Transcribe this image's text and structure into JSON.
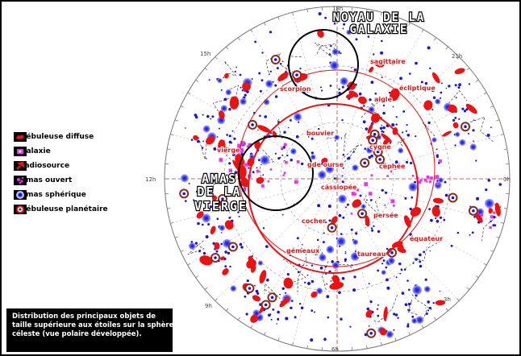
{
  "title_galactic_core": [
    "NOYAU DE LA",
    "GALAXIE"
  ],
  "title_virgo_cluster": [
    "AMAS",
    "DE LA",
    "VIERGE"
  ],
  "hour_labels": [
    "18h",
    "21h",
    "0h",
    "3h",
    "6h",
    "9h",
    "12h",
    "15h"
  ],
  "constellations": [
    "sagittaire",
    "scorpion",
    "aigle",
    "bouvier",
    "vierge",
    "gde ourse",
    "cassiopée",
    "cygne",
    "céphée",
    "persée",
    "cocher",
    "gémeaux",
    "taureau"
  ],
  "circle_labels": [
    "écliptique",
    "équateur"
  ],
  "legend": [
    {
      "label": "nébuleuse diffuse",
      "icon": "diffuse-nebula-icon"
    },
    {
      "label": "galaxie",
      "icon": "galaxy-icon"
    },
    {
      "label": "radiosource",
      "icon": "radio-source-icon"
    },
    {
      "label": "amas ouvert",
      "icon": "open-cluster-icon"
    },
    {
      "label": "amas sphérique",
      "icon": "globular-cluster-icon"
    },
    {
      "label": "nébuleuse planétaire",
      "icon": "planetary-nebula-icon"
    }
  ],
  "caption": [
    "Distribution des principaux objets de",
    "taille supérieure aux étoiles sur la sphère",
    "céleste    (vue polaire développée)."
  ],
  "colors": {
    "red": "#ee1111",
    "blue": "#1515e0",
    "magenta": "#ee33ee",
    "black": "#000000",
    "grid": "#999999"
  }
}
